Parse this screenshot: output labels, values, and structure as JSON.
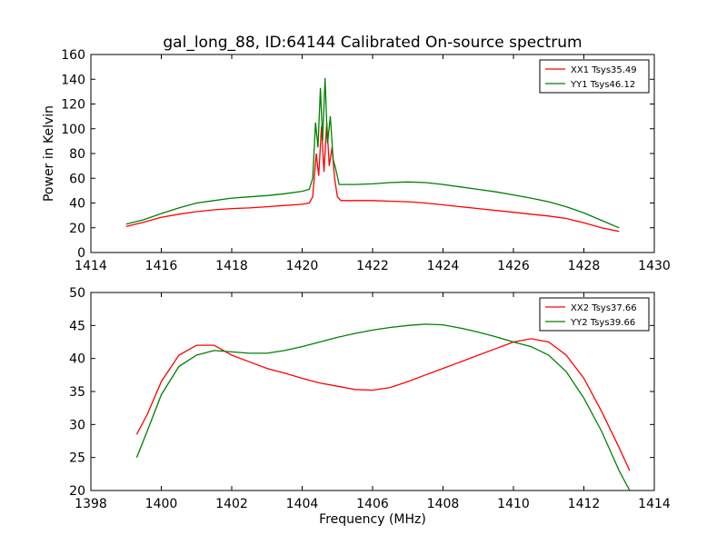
{
  "figure": {
    "title": "gal_long_88, ID:64144 Calibrated On-source spectrum"
  },
  "chart_data": [
    {
      "type": "line",
      "title": "gal_long_88, ID:64144 Calibrated On-source spectrum",
      "xlabel": "",
      "ylabel": "Power in Kelvin",
      "xlim": [
        1414,
        1430
      ],
      "ylim": [
        0,
        160
      ],
      "xticks": [
        1414,
        1416,
        1418,
        1420,
        1422,
        1424,
        1426,
        1428,
        1430
      ],
      "yticks": [
        0,
        20,
        40,
        60,
        80,
        100,
        120,
        140,
        160
      ],
      "grid": false,
      "legend_position": "top-right",
      "series": [
        {
          "name": "XX1 Tsys35.49",
          "color": "#ff0000",
          "points": [
            [
              1415.0,
              21
            ],
            [
              1415.5,
              24.5
            ],
            [
              1416.0,
              28.5
            ],
            [
              1416.5,
              31
            ],
            [
              1417.0,
              33
            ],
            [
              1417.5,
              34.5
            ],
            [
              1418.0,
              35.5
            ],
            [
              1418.5,
              36
            ],
            [
              1419.0,
              37
            ],
            [
              1419.5,
              38
            ],
            [
              1420.0,
              39
            ],
            [
              1420.2,
              40
            ],
            [
              1420.3,
              45
            ],
            [
              1420.4,
              80
            ],
            [
              1420.47,
              62
            ],
            [
              1420.55,
              102
            ],
            [
              1420.62,
              65
            ],
            [
              1420.7,
              105
            ],
            [
              1420.77,
              70
            ],
            [
              1420.85,
              85
            ],
            [
              1420.92,
              60
            ],
            [
              1421.0,
              45
            ],
            [
              1421.1,
              42
            ],
            [
              1421.5,
              42
            ],
            [
              1422.0,
              42
            ],
            [
              1422.5,
              41.5
            ],
            [
              1423.0,
              41
            ],
            [
              1423.5,
              40
            ],
            [
              1424.0,
              38.5
            ],
            [
              1424.5,
              37
            ],
            [
              1425.0,
              35.5
            ],
            [
              1425.5,
              34
            ],
            [
              1426.0,
              32.5
            ],
            [
              1426.5,
              31
            ],
            [
              1427.0,
              29.5
            ],
            [
              1427.5,
              27.5
            ],
            [
              1428.0,
              24
            ],
            [
              1428.5,
              20
            ],
            [
              1429.0,
              17
            ]
          ]
        },
        {
          "name": "YY1 Tsys46.12",
          "color": "#008000",
          "points": [
            [
              1415.0,
              23
            ],
            [
              1415.5,
              26.5
            ],
            [
              1416.0,
              31.5
            ],
            [
              1416.5,
              36
            ],
            [
              1417.0,
              40
            ],
            [
              1417.5,
              42
            ],
            [
              1418.0,
              44
            ],
            [
              1418.5,
              45
            ],
            [
              1419.0,
              46
            ],
            [
              1419.5,
              47.5
            ],
            [
              1420.0,
              49.5
            ],
            [
              1420.2,
              51
            ],
            [
              1420.3,
              60
            ],
            [
              1420.38,
              105
            ],
            [
              1420.45,
              85
            ],
            [
              1420.52,
              133
            ],
            [
              1420.58,
              90
            ],
            [
              1420.65,
              141
            ],
            [
              1420.72,
              88
            ],
            [
              1420.8,
              110
            ],
            [
              1420.88,
              75
            ],
            [
              1420.95,
              68
            ],
            [
              1421.05,
              55
            ],
            [
              1421.5,
              55
            ],
            [
              1422.0,
              55.5
            ],
            [
              1422.5,
              56.5
            ],
            [
              1423.0,
              57
            ],
            [
              1423.5,
              56.5
            ],
            [
              1424.0,
              55
            ],
            [
              1424.5,
              53
            ],
            [
              1425.0,
              51
            ],
            [
              1425.5,
              49
            ],
            [
              1426.0,
              46.5
            ],
            [
              1426.5,
              44
            ],
            [
              1427.0,
              41
            ],
            [
              1427.5,
              37
            ],
            [
              1428.0,
              32
            ],
            [
              1428.5,
              26
            ],
            [
              1429.0,
              20
            ]
          ]
        }
      ]
    },
    {
      "type": "line",
      "title": "",
      "xlabel": "Frequency (MHz)",
      "ylabel": "",
      "xlim": [
        1398,
        1414
      ],
      "ylim": [
        20,
        50
      ],
      "xticks": [
        1398,
        1400,
        1402,
        1404,
        1406,
        1408,
        1410,
        1412,
        1414
      ],
      "yticks": [
        20,
        25,
        30,
        35,
        40,
        45,
        50
      ],
      "grid": false,
      "legend_position": "top-right",
      "series": [
        {
          "name": "XX2 Tsys37.66",
          "color": "#ff0000",
          "points": [
            [
              1399.3,
              28.5
            ],
            [
              1399.6,
              31.5
            ],
            [
              1400.0,
              36.5
            ],
            [
              1400.5,
              40.5
            ],
            [
              1401.0,
              42
            ],
            [
              1401.5,
              42
            ],
            [
              1402.0,
              40.5
            ],
            [
              1402.5,
              39.5
            ],
            [
              1403.0,
              38.5
            ],
            [
              1403.5,
              37.8
            ],
            [
              1404.0,
              37
            ],
            [
              1404.5,
              36.3
            ],
            [
              1405.0,
              35.8
            ],
            [
              1405.5,
              35.3
            ],
            [
              1406.0,
              35.2
            ],
            [
              1406.5,
              35.6
            ],
            [
              1407.0,
              36.5
            ],
            [
              1407.5,
              37.5
            ],
            [
              1408.0,
              38.5
            ],
            [
              1408.5,
              39.5
            ],
            [
              1409.0,
              40.5
            ],
            [
              1409.5,
              41.5
            ],
            [
              1410.0,
              42.5
            ],
            [
              1410.5,
              43
            ],
            [
              1411.0,
              42.5
            ],
            [
              1411.5,
              40.5
            ],
            [
              1412.0,
              37
            ],
            [
              1412.5,
              32
            ],
            [
              1413.0,
              26.5
            ],
            [
              1413.3,
              23
            ]
          ]
        },
        {
          "name": "YY2 Tsys39.66",
          "color": "#008000",
          "points": [
            [
              1399.3,
              25
            ],
            [
              1399.6,
              29
            ],
            [
              1400.0,
              34.5
            ],
            [
              1400.5,
              38.8
            ],
            [
              1401.0,
              40.5
            ],
            [
              1401.5,
              41.2
            ],
            [
              1402.0,
              41
            ],
            [
              1402.5,
              40.8
            ],
            [
              1403.0,
              40.8
            ],
            [
              1403.5,
              41.2
            ],
            [
              1404.0,
              41.8
            ],
            [
              1404.5,
              42.5
            ],
            [
              1405.0,
              43.2
            ],
            [
              1405.5,
              43.8
            ],
            [
              1406.0,
              44.3
            ],
            [
              1406.5,
              44.7
            ],
            [
              1407.0,
              45
            ],
            [
              1407.5,
              45.2
            ],
            [
              1408.0,
              45.1
            ],
            [
              1408.5,
              44.6
            ],
            [
              1409.0,
              44
            ],
            [
              1409.5,
              43.3
            ],
            [
              1410.0,
              42.5
            ],
            [
              1410.5,
              41.8
            ],
            [
              1411.0,
              40.5
            ],
            [
              1411.5,
              38
            ],
            [
              1412.0,
              34
            ],
            [
              1412.5,
              29
            ],
            [
              1413.0,
              23
            ],
            [
              1413.3,
              20
            ]
          ]
        }
      ]
    }
  ]
}
